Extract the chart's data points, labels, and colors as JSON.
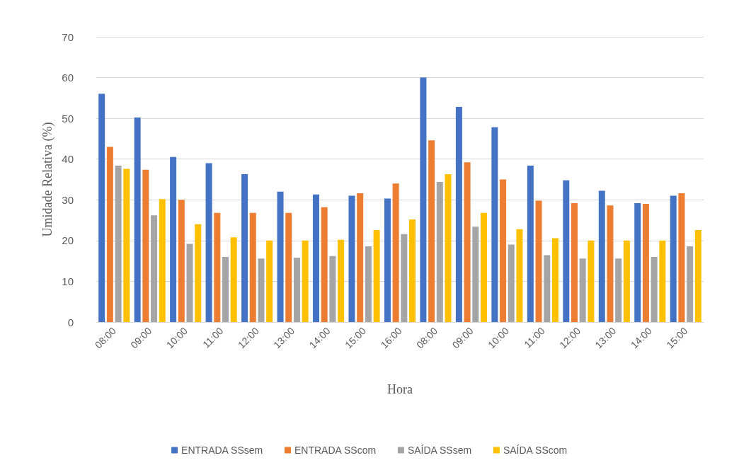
{
  "chart_data": {
    "type": "bar",
    "xlabel": "Hora",
    "ylabel": "Umidade Relativa (%)",
    "categories": [
      "08:00",
      "09:00",
      "10:00",
      "11:00",
      "12:00",
      "13:00",
      "14:00",
      "15:00",
      "16:00",
      "08:00",
      "09:00",
      "10:00",
      "11:00",
      "12:00",
      "13:00",
      "14:00",
      "15:00"
    ],
    "series": [
      {
        "name": "ENTRADA SSsem",
        "color": "#4472c4",
        "values": [
          56,
          50.2,
          40.5,
          39,
          36.3,
          32,
          31.3,
          31,
          30.3,
          60,
          52.8,
          47.8,
          38.4,
          34.8,
          32.2,
          29.2,
          31
        ]
      },
      {
        "name": "ENTRADA SScom",
        "color": "#ed7d31",
        "values": [
          43,
          37.4,
          30,
          26.8,
          26.8,
          26.8,
          28.2,
          31.6,
          34,
          44.6,
          39.2,
          35,
          29.8,
          29.2,
          28.6,
          29,
          31.6
        ]
      },
      {
        "name": "SAÍDA SSsem",
        "color": "#a5a5a5",
        "values": [
          38.4,
          26.2,
          19.2,
          16,
          15.6,
          15.8,
          16.2,
          18.6,
          21.6,
          34.4,
          23.4,
          19,
          16.4,
          15.6,
          15.6,
          16,
          18.6
        ]
      },
      {
        "name": "SAÍDA SScom",
        "color": "#ffc000",
        "values": [
          37.6,
          30.2,
          24,
          20.8,
          20,
          20,
          20.2,
          22.6,
          25.2,
          36.3,
          26.8,
          22.8,
          20.6,
          20,
          20,
          20,
          22.6
        ]
      }
    ],
    "ylim": [
      0,
      70
    ],
    "yticks": [
      0,
      10,
      20,
      30,
      40,
      50,
      60,
      70
    ],
    "grid": "y",
    "legend": "bottom"
  }
}
